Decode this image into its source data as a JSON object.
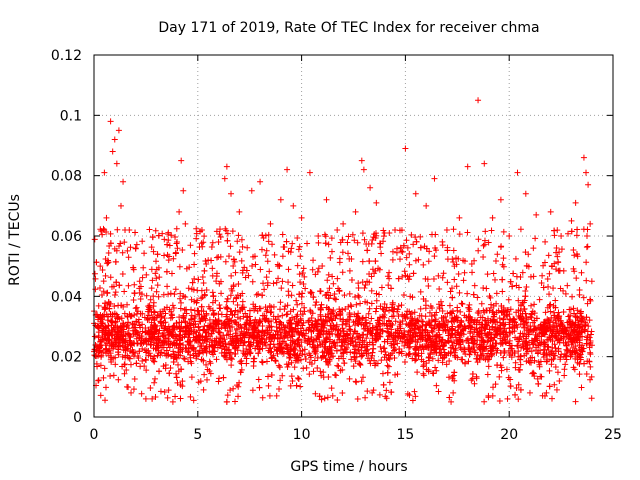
{
  "chart_data": {
    "type": "scatter",
    "title": "Day 171 of 2019, Rate Of TEC Index for receiver chma",
    "xlabel": "GPS time / hours",
    "ylabel": "ROTI / TECUs",
    "xlim": [
      0,
      25
    ],
    "ylim": [
      0,
      0.12
    ],
    "xticks": [
      0,
      5,
      10,
      15,
      20,
      25
    ],
    "xtick_labels": [
      "0",
      "5",
      "10",
      "15",
      "20",
      "25"
    ],
    "yticks": [
      0,
      0.02,
      0.04,
      0.06,
      0.08,
      0.1,
      0.12
    ],
    "ytick_labels": [
      "0",
      "0.02",
      "0.04",
      "0.06",
      "0.08",
      "0.1",
      "0.12"
    ],
    "grid": true,
    "marker": "plus",
    "color": "#ff0000",
    "series": [
      {
        "name": "ROTI",
        "points": [
          [
            0.8,
            0.098
          ],
          [
            1.0,
            0.092
          ],
          [
            1.2,
            0.095
          ],
          [
            0.9,
            0.088
          ],
          [
            1.1,
            0.084
          ],
          [
            0.5,
            0.081
          ],
          [
            1.4,
            0.078
          ],
          [
            0.6,
            0.066
          ],
          [
            1.3,
            0.07
          ],
          [
            0.3,
            0.05
          ],
          [
            1.7,
            0.062
          ],
          [
            2.2,
            0.045
          ],
          [
            3.0,
            0.046
          ],
          [
            3.6,
            0.052
          ],
          [
            4.2,
            0.085
          ],
          [
            4.3,
            0.075
          ],
          [
            4.1,
            0.068
          ],
          [
            4.4,
            0.064
          ],
          [
            4.0,
            0.058
          ],
          [
            3.8,
            0.005
          ],
          [
            2.5,
            0.006
          ],
          [
            5.2,
            0.062
          ],
          [
            5.5,
            0.052
          ],
          [
            6.0,
            0.058
          ],
          [
            6.4,
            0.083
          ],
          [
            6.3,
            0.079
          ],
          [
            6.6,
            0.074
          ],
          [
            7.0,
            0.068
          ],
          [
            7.6,
            0.075
          ],
          [
            8.0,
            0.078
          ],
          [
            8.5,
            0.064
          ],
          [
            9.0,
            0.072
          ],
          [
            9.3,
            0.082
          ],
          [
            9.6,
            0.07
          ],
          [
            10.0,
            0.066
          ],
          [
            10.4,
            0.081
          ],
          [
            10.8,
            0.06
          ],
          [
            11.2,
            0.072
          ],
          [
            11.5,
            0.007
          ],
          [
            12.0,
            0.064
          ],
          [
            12.6,
            0.068
          ],
          [
            12.9,
            0.085
          ],
          [
            13.0,
            0.082
          ],
          [
            13.3,
            0.076
          ],
          [
            13.6,
            0.071
          ],
          [
            14.0,
            0.061
          ],
          [
            14.5,
            0.062
          ],
          [
            14.8,
            0.055
          ],
          [
            15.0,
            0.089
          ],
          [
            15.5,
            0.074
          ],
          [
            16.0,
            0.07
          ],
          [
            16.4,
            0.079
          ],
          [
            17.0,
            0.062
          ],
          [
            17.2,
            0.005
          ],
          [
            17.3,
            0.008
          ],
          [
            17.6,
            0.066
          ],
          [
            18.0,
            0.083
          ],
          [
            18.5,
            0.105
          ],
          [
            18.8,
            0.084
          ],
          [
            19.2,
            0.066
          ],
          [
            19.6,
            0.072
          ],
          [
            20.0,
            0.06
          ],
          [
            20.4,
            0.081
          ],
          [
            20.8,
            0.074
          ],
          [
            21.0,
            0.008
          ],
          [
            21.3,
            0.067
          ],
          [
            22.0,
            0.068
          ],
          [
            22.5,
            0.06
          ],
          [
            23.0,
            0.065
          ],
          [
            23.2,
            0.071
          ],
          [
            23.6,
            0.086
          ],
          [
            23.7,
            0.081
          ],
          [
            23.8,
            0.077
          ],
          [
            23.9,
            0.064
          ],
          [
            0.2,
            0.012
          ],
          [
            2.8,
            0.006
          ],
          [
            8.8,
            0.007
          ],
          [
            13.4,
            0.008
          ],
          [
            19.0,
            0.007
          ],
          [
            22.3,
            0.009
          ]
        ],
        "dense_band": {
          "x_range": [
            0,
            24
          ],
          "y_low": 0.005,
          "y_core": [
            0.015,
            0.04
          ],
          "y_high": 0.07
        }
      }
    ]
  }
}
